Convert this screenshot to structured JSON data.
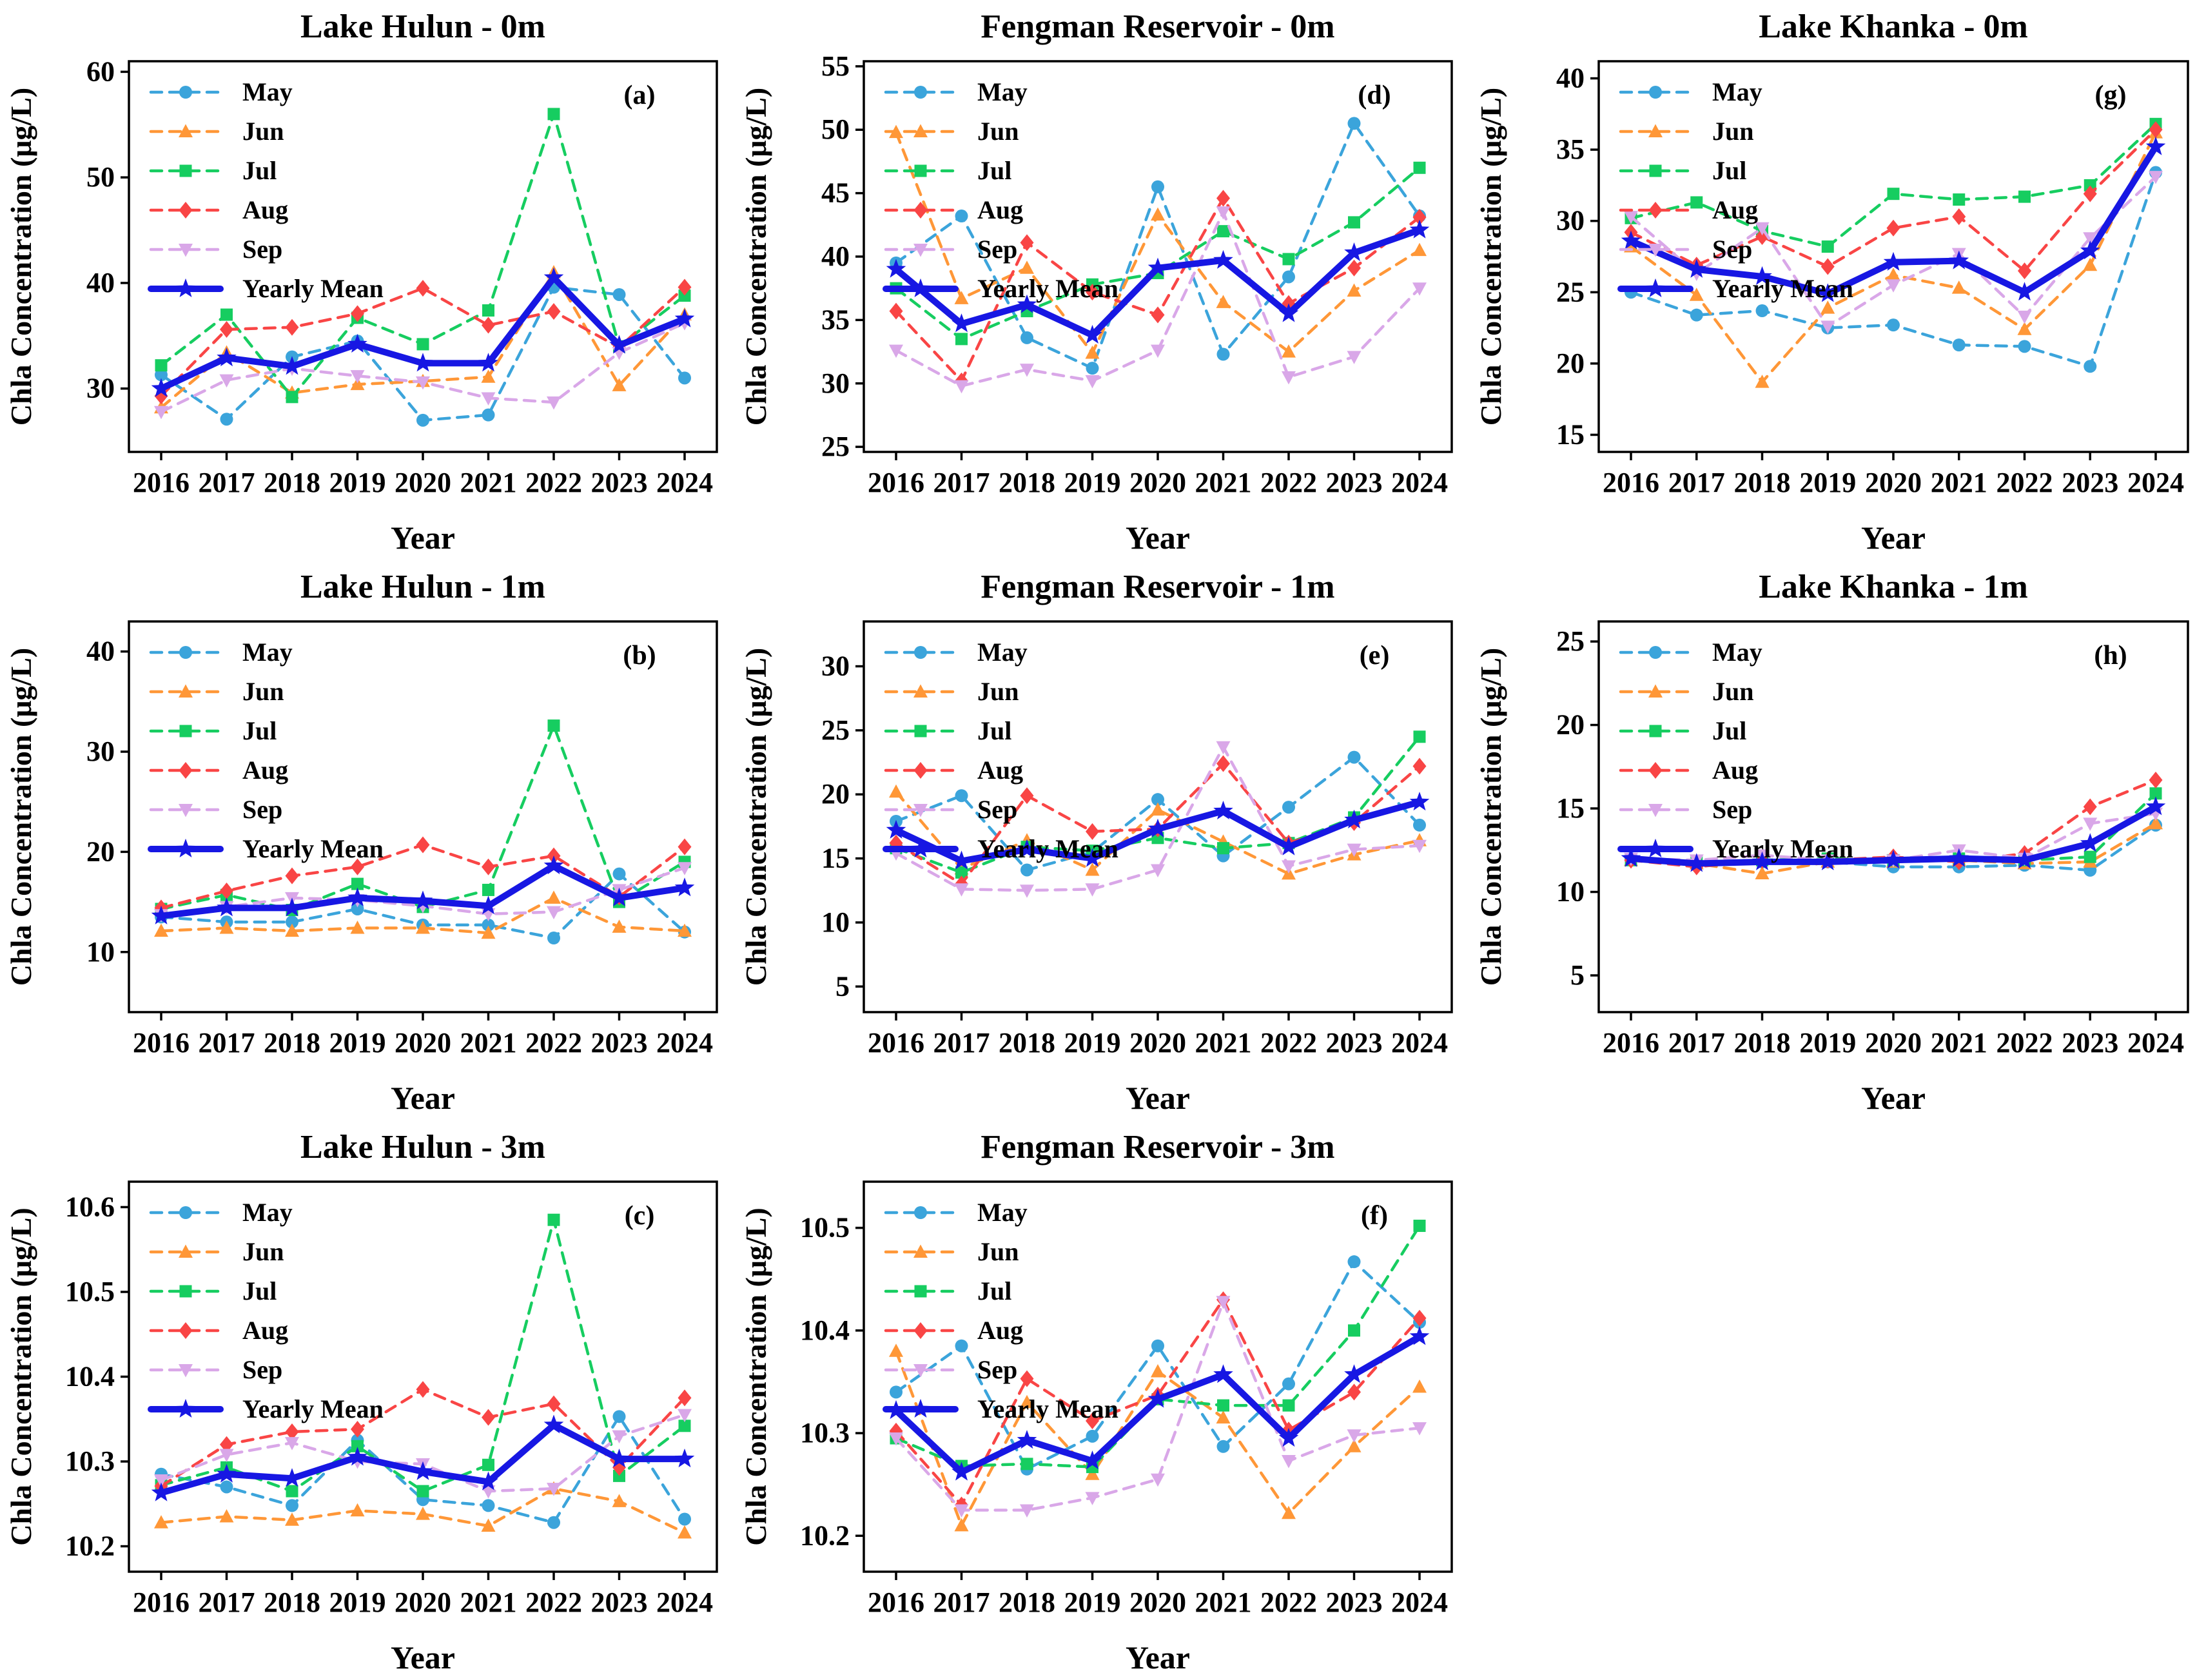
{
  "figure": {
    "xlabel": "Year",
    "ylabel": "Chla Concentration (μg/L)",
    "years": [
      "2016",
      "2017",
      "2018",
      "2019",
      "2020",
      "2021",
      "2022",
      "2023",
      "2024"
    ],
    "legend_labels": [
      "May",
      "Jun",
      "Jul",
      "Aug",
      "Sep",
      "Yearly Mean"
    ],
    "colors": {
      "May": "#3BA4DB",
      "Jun": "#FF9737",
      "Jul": "#16CD60",
      "Aug": "#F94545",
      "Sep": "#D9A7E8",
      "Yearly Mean": "#1717E3"
    },
    "markers": {
      "May": "circle",
      "Jun": "triangle-up",
      "Jul": "square",
      "Aug": "diamond",
      "Sep": "triangle-down",
      "Yearly Mean": "star"
    },
    "axis_color": "#000000",
    "background": "#ffffff"
  },
  "chart_data": [
    {
      "type": "line",
      "title": "Lake Hulun - 0m",
      "panel": "(a)",
      "grid_cell": 0,
      "xlabel": "Year",
      "ylabel": "Chla Concentration (μg/L)",
      "ylim": [
        24,
        61
      ],
      "yticks": [
        30,
        40,
        50,
        60
      ],
      "ydecimals": 0,
      "x": [
        "2016",
        "2017",
        "2018",
        "2019",
        "2020",
        "2021",
        "2022",
        "2023",
        "2024"
      ],
      "legend_position": "top-left",
      "grid": false,
      "series": [
        {
          "name": "May",
          "values": [
            31.3,
            27.1,
            33.0,
            34.5,
            27.0,
            27.5,
            39.6,
            38.9,
            31.0
          ]
        },
        {
          "name": "Jun",
          "values": [
            28.2,
            33.4,
            29.6,
            30.4,
            30.7,
            31.1,
            41.0,
            30.3,
            37.0
          ]
        },
        {
          "name": "Jul",
          "values": [
            32.2,
            37.0,
            29.2,
            36.7,
            34.2,
            37.4,
            56.0,
            34.0,
            38.8
          ]
        },
        {
          "name": "Aug",
          "values": [
            29.3,
            35.6,
            35.8,
            37.1,
            39.5,
            36.0,
            37.3,
            33.9,
            39.6
          ]
        },
        {
          "name": "Sep",
          "values": [
            27.8,
            30.8,
            31.9,
            31.2,
            30.6,
            29.1,
            28.7,
            33.4,
            36.2
          ]
        },
        {
          "name": "Yearly Mean",
          "values": [
            30.0,
            32.9,
            32.1,
            34.2,
            32.4,
            32.4,
            40.5,
            34.1,
            36.6
          ]
        }
      ]
    },
    {
      "type": "line",
      "title": "Fengman Reservoir - 0m",
      "panel": "(d)",
      "grid_cell": 1,
      "xlabel": "Year",
      "ylabel": "Chla Concentration (μg/L)",
      "ylim": [
        24.6,
        55.4
      ],
      "yticks": [
        25,
        30,
        35,
        40,
        45,
        50,
        55
      ],
      "ydecimals": 0,
      "x": [
        "2016",
        "2017",
        "2018",
        "2019",
        "2020",
        "2021",
        "2022",
        "2023",
        "2024"
      ],
      "legend_position": "top-left",
      "grid": false,
      "series": [
        {
          "name": "May",
          "values": [
            39.5,
            43.2,
            33.6,
            31.2,
            45.5,
            32.3,
            38.4,
            50.5,
            43.2
          ]
        },
        {
          "name": "Jun",
          "values": [
            49.8,
            36.7,
            39.1,
            32.4,
            43.3,
            36.4,
            32.5,
            37.3,
            40.5
          ]
        },
        {
          "name": "Jul",
          "values": [
            37.5,
            33.5,
            35.7,
            37.8,
            38.7,
            42.0,
            39.8,
            42.7,
            47.0
          ]
        },
        {
          "name": "Aug",
          "values": [
            35.7,
            30.2,
            41.1,
            37.2,
            35.4,
            44.6,
            36.3,
            39.1,
            43.1
          ]
        },
        {
          "name": "Sep",
          "values": [
            32.6,
            29.8,
            31.1,
            30.2,
            32.6,
            43.5,
            30.5,
            32.1,
            37.5
          ]
        },
        {
          "name": "Yearly Mean",
          "values": [
            39.0,
            34.7,
            36.2,
            33.8,
            39.1,
            39.7,
            35.5,
            40.3,
            42.1
          ]
        }
      ]
    },
    {
      "type": "line",
      "title": "Lake Khanka - 0m",
      "panel": "(g)",
      "grid_cell": 2,
      "xlabel": "Year",
      "ylabel": "Chla Concentration (μg/L)",
      "ylim": [
        13.8,
        41.2
      ],
      "yticks": [
        15,
        20,
        25,
        30,
        35,
        40
      ],
      "ydecimals": 0,
      "x": [
        "2016",
        "2017",
        "2018",
        "2019",
        "2020",
        "2021",
        "2022",
        "2023",
        "2024"
      ],
      "legend_position": "top-left",
      "grid": false,
      "series": [
        {
          "name": "May",
          "values": [
            25.0,
            23.4,
            23.7,
            22.5,
            22.7,
            21.3,
            21.2,
            19.8,
            33.4
          ]
        },
        {
          "name": "Jun",
          "values": [
            28.2,
            24.8,
            18.7,
            23.9,
            26.2,
            25.3,
            22.4,
            26.9,
            36.2
          ]
        },
        {
          "name": "Jul",
          "values": [
            30.2,
            31.3,
            29.3,
            28.2,
            31.9,
            31.5,
            31.7,
            32.5,
            36.8
          ]
        },
        {
          "name": "Aug",
          "values": [
            29.2,
            26.9,
            28.9,
            26.8,
            29.5,
            30.3,
            26.5,
            31.9,
            36.4
          ]
        },
        {
          "name": "Sep",
          "values": [
            30.3,
            26.3,
            29.5,
            22.6,
            25.5,
            27.7,
            23.3,
            28.8,
            33.1
          ]
        },
        {
          "name": "Yearly Mean",
          "values": [
            28.6,
            26.6,
            26.1,
            24.9,
            27.1,
            27.2,
            25.0,
            27.9,
            35.2
          ]
        }
      ]
    },
    {
      "type": "line",
      "title": "Lake Hulun - 1m",
      "panel": "(b)",
      "grid_cell": 3,
      "xlabel": "Year",
      "ylabel": "Chla Concentration (μg/L)",
      "ylim": [
        4,
        43
      ],
      "yticks": [
        10,
        20,
        30,
        40
      ],
      "ydecimals": 0,
      "x": [
        "2016",
        "2017",
        "2018",
        "2019",
        "2020",
        "2021",
        "2022",
        "2023",
        "2024"
      ],
      "legend_position": "top-left",
      "grid": false,
      "series": [
        {
          "name": "May",
          "values": [
            13.5,
            13.0,
            13.0,
            14.3,
            12.7,
            12.7,
            11.4,
            17.8,
            12.0
          ]
        },
        {
          "name": "Jun",
          "values": [
            12.1,
            12.4,
            12.1,
            12.4,
            12.4,
            11.9,
            15.4,
            12.5,
            12.1
          ]
        },
        {
          "name": "Jul",
          "values": [
            14.3,
            15.7,
            14.2,
            16.8,
            14.5,
            16.2,
            32.6,
            15.0,
            19.0
          ]
        },
        {
          "name": "Aug",
          "values": [
            14.4,
            16.1,
            17.6,
            18.5,
            20.7,
            18.5,
            19.6,
            15.5,
            20.5
          ]
        },
        {
          "name": "Sep",
          "values": [
            13.7,
            14.5,
            15.4,
            15.2,
            14.6,
            13.8,
            14.0,
            16.2,
            18.4
          ]
        },
        {
          "name": "Yearly Mean",
          "values": [
            13.6,
            14.4,
            14.4,
            15.4,
            15.1,
            14.6,
            18.6,
            15.4,
            16.4
          ]
        }
      ]
    },
    {
      "type": "line",
      "title": "Fengman Reservoir - 1m",
      "panel": "(e)",
      "grid_cell": 4,
      "xlabel": "Year",
      "ylabel": "Chla Concentration (μg/L)",
      "ylim": [
        3,
        33.5
      ],
      "yticks": [
        5,
        10,
        15,
        20,
        25,
        30
      ],
      "ydecimals": 0,
      "x": [
        "2016",
        "2017",
        "2018",
        "2019",
        "2020",
        "2021",
        "2022",
        "2023",
        "2024"
      ],
      "legend_position": "top-left",
      "grid": false,
      "series": [
        {
          "name": "May",
          "values": [
            17.9,
            19.9,
            14.1,
            15.5,
            19.6,
            15.2,
            19.0,
            22.9,
            17.6
          ]
        },
        {
          "name": "Jun",
          "values": [
            20.2,
            14.2,
            16.4,
            14.1,
            18.8,
            16.3,
            13.8,
            15.3,
            16.4
          ]
        },
        {
          "name": "Jul",
          "values": [
            15.8,
            13.9,
            15.9,
            15.6,
            16.6,
            15.8,
            16.2,
            18.2,
            24.5
          ]
        },
        {
          "name": "Aug",
          "values": [
            16.2,
            13.0,
            19.9,
            17.1,
            17.3,
            22.4,
            16.2,
            17.8,
            22.2
          ]
        },
        {
          "name": "Sep",
          "values": [
            15.4,
            12.6,
            12.5,
            12.6,
            14.1,
            23.7,
            14.4,
            15.7,
            16.0
          ]
        },
        {
          "name": "Yearly Mean",
          "values": [
            17.2,
            14.8,
            15.7,
            15.0,
            17.3,
            18.7,
            15.9,
            18.0,
            19.4
          ]
        }
      ]
    },
    {
      "type": "line",
      "title": "Lake Khanka - 1m",
      "panel": "(h)",
      "grid_cell": 5,
      "xlabel": "Year",
      "ylabel": "Chla Concentration (μg/L)",
      "ylim": [
        2.8,
        26.2
      ],
      "yticks": [
        5,
        10,
        15,
        20,
        25
      ],
      "ydecimals": 0,
      "x": [
        "2016",
        "2017",
        "2018",
        "2019",
        "2020",
        "2021",
        "2022",
        "2023",
        "2024"
      ],
      "legend_position": "top-left",
      "grid": false,
      "series": [
        {
          "name": "May",
          "values": [
            12.0,
            11.7,
            11.8,
            11.8,
            11.5,
            11.5,
            11.6,
            11.3,
            14.0
          ]
        },
        {
          "name": "Jun",
          "values": [
            11.9,
            11.7,
            11.1,
            11.8,
            11.8,
            11.9,
            11.7,
            11.8,
            14.1
          ]
        },
        {
          "name": "Jul",
          "values": [
            11.9,
            11.8,
            11.9,
            12.0,
            11.9,
            12.0,
            11.9,
            12.1,
            15.9
          ]
        },
        {
          "name": "Aug",
          "values": [
            11.9,
            11.5,
            11.9,
            11.9,
            12.1,
            11.8,
            12.3,
            15.1,
            16.7
          ]
        },
        {
          "name": "Sep",
          "values": [
            12.0,
            11.9,
            12.2,
            11.9,
            11.9,
            12.5,
            12.0,
            14.1,
            14.7
          ]
        },
        {
          "name": "Yearly Mean",
          "values": [
            12.0,
            11.7,
            11.8,
            11.8,
            11.9,
            12.0,
            11.9,
            12.9,
            15.1
          ]
        }
      ]
    },
    {
      "type": "line",
      "title": "Lake Hulun - 3m",
      "panel": "(c)",
      "grid_cell": 6,
      "xlabel": "Year",
      "ylabel": "Chla Concentration (μg/L)",
      "ylim": [
        10.17,
        10.63
      ],
      "yticks": [
        10.2,
        10.3,
        10.4,
        10.5,
        10.6
      ],
      "ydecimals": 1,
      "x": [
        "2016",
        "2017",
        "2018",
        "2019",
        "2020",
        "2021",
        "2022",
        "2023",
        "2024"
      ],
      "legend_position": "top-left",
      "grid": false,
      "series": [
        {
          "name": "May",
          "values": [
            10.285,
            10.27,
            10.248,
            10.325,
            10.255,
            10.248,
            10.228,
            10.353,
            10.232
          ]
        },
        {
          "name": "Jun",
          "values": [
            10.228,
            10.235,
            10.231,
            10.242,
            10.238,
            10.224,
            10.268,
            10.253,
            10.216
          ]
        },
        {
          "name": "Jul",
          "values": [
            10.272,
            10.293,
            10.265,
            10.318,
            10.265,
            10.296,
            10.585,
            10.283,
            10.342
          ]
        },
        {
          "name": "Aug",
          "values": [
            10.271,
            10.32,
            10.335,
            10.338,
            10.385,
            10.352,
            10.368,
            10.293,
            10.375
          ]
        },
        {
          "name": "Sep",
          "values": [
            10.278,
            10.308,
            10.322,
            10.3,
            10.297,
            10.265,
            10.268,
            10.33,
            10.355
          ]
        },
        {
          "name": "Yearly Mean",
          "values": [
            10.263,
            10.285,
            10.28,
            10.305,
            10.288,
            10.276,
            10.343,
            10.303,
            10.303
          ]
        }
      ]
    },
    {
      "type": "line",
      "title": "Fengman Reservoir - 3m",
      "panel": "(f)",
      "grid_cell": 7,
      "xlabel": "Year",
      "ylabel": "Chla Concentration (μg/L)",
      "ylim": [
        10.165,
        10.545
      ],
      "yticks": [
        10.2,
        10.3,
        10.4,
        10.5
      ],
      "ydecimals": 1,
      "x": [
        "2016",
        "2017",
        "2018",
        "2019",
        "2020",
        "2021",
        "2022",
        "2023",
        "2024"
      ],
      "legend_position": "top-left",
      "grid": false,
      "series": [
        {
          "name": "May",
          "values": [
            10.34,
            10.385,
            10.265,
            10.297,
            10.385,
            10.287,
            10.348,
            10.467,
            10.408
          ]
        },
        {
          "name": "Jun",
          "values": [
            10.38,
            10.21,
            10.33,
            10.26,
            10.36,
            10.315,
            10.222,
            10.287,
            10.345
          ]
        },
        {
          "name": "Jul",
          "values": [
            10.295,
            10.268,
            10.27,
            10.267,
            10.333,
            10.327,
            10.327,
            10.4,
            10.502
          ]
        },
        {
          "name": "Aug",
          "values": [
            10.302,
            10.23,
            10.353,
            10.312,
            10.337,
            10.43,
            10.303,
            10.34,
            10.412
          ]
        },
        {
          "name": "Sep",
          "values": [
            10.295,
            10.225,
            10.225,
            10.237,
            10.255,
            10.428,
            10.273,
            10.298,
            10.305
          ]
        },
        {
          "name": "Yearly Mean",
          "values": [
            10.322,
            10.262,
            10.293,
            10.273,
            10.333,
            10.357,
            10.295,
            10.357,
            10.394
          ]
        }
      ]
    }
  ]
}
